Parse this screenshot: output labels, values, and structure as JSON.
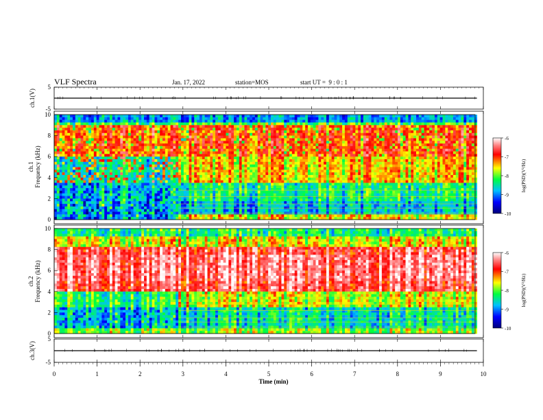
{
  "header": {
    "title": "VLF Spectra",
    "date": "Jan. 17, 2022",
    "station": "station=MOS",
    "start_ut": "start UT =  9 : 0 : 1"
  },
  "chart_data": [
    {
      "type": "line",
      "name": "ch1-waveform",
      "ylabel": "ch.1(V)",
      "ylim": [
        -5,
        5
      ],
      "yticks": [
        "5",
        "-5"
      ],
      "x_range_min": [
        0,
        9.85
      ],
      "level": 0
    },
    {
      "type": "heatmap",
      "name": "ch1-spectrogram",
      "ylabel": "ch.1\nFrequency (kHz)",
      "ylim": [
        0,
        10
      ],
      "yticks": [
        "0",
        "2",
        "4",
        "6",
        "8",
        "10"
      ],
      "x_range_min": [
        0,
        9.85
      ],
      "colorbar": {
        "label": "log(PSD)(V²/Hz)",
        "range": [
          -10,
          -6
        ],
        "ticks": [
          "-6",
          "-7",
          "-8",
          "-9",
          "-10"
        ]
      },
      "features": {
        "low_frequency_activity_ends_min": 2.9,
        "strong_band_kHz": [
          6.0,
          9.0
        ],
        "top_band_kHz": [
          9.0,
          10.0
        ]
      }
    },
    {
      "type": "heatmap",
      "name": "ch2-spectrogram",
      "ylabel": "ch.2\nFrequency (kHz)",
      "ylim": [
        0,
        10
      ],
      "yticks": [
        "0",
        "2",
        "4",
        "6",
        "8",
        "10"
      ],
      "x_range_min": [
        0,
        9.85
      ],
      "colorbar": {
        "label": "log(PSD)(V²/Hz)",
        "range": [
          -10,
          -6
        ],
        "ticks": [
          "-6",
          "-7",
          "-8",
          "-9",
          "-10"
        ]
      },
      "features": {
        "low_frequency_activity_ends_min": 2.9,
        "strong_band_kHz": [
          4.0,
          8.0
        ]
      }
    },
    {
      "type": "line",
      "name": "ch3-waveform",
      "ylabel": "ch.3(V)",
      "ylim": [
        -5,
        5
      ],
      "yticks": [
        "5",
        "-5"
      ],
      "x_range_min": [
        0,
        9.85
      ],
      "level": 0
    }
  ],
  "xaxis": {
    "label": "Time (min)",
    "range": [
      0,
      10
    ],
    "ticks": [
      "0",
      "1",
      "2",
      "3",
      "4",
      "5",
      "6",
      "7",
      "8",
      "9",
      "10"
    ]
  },
  "colormap": [
    "#00007a",
    "#0000ff",
    "#0080ff",
    "#00ffff",
    "#00ff00",
    "#ffff00",
    "#ff0000",
    "#ff8080",
    "#ffffff"
  ]
}
